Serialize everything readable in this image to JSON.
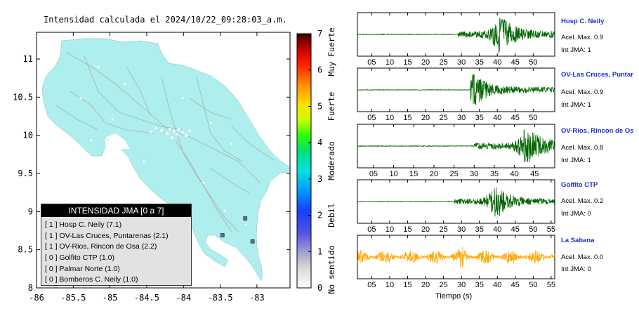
{
  "map": {
    "title": "Intensidad calculada el 2024/10/22_09:28:03_a.m.",
    "x_ticks": [
      "-86",
      "-85.5",
      "-85",
      "-84.5",
      "-84",
      "-83.5",
      "-83"
    ],
    "y_ticks": [
      "11",
      "10.5",
      "10",
      "9.5",
      "9",
      "8.5",
      "8"
    ],
    "land_color": "#aeeeed",
    "station_color": "#6a6aa8"
  },
  "colorbar": {
    "ticks": [
      "0",
      "1",
      "2",
      "3",
      "4",
      "5",
      "6",
      "7"
    ],
    "labels": [
      "No sentido",
      "Debil",
      "Moderado",
      "Fuerte",
      "Muy Fuerte"
    ]
  },
  "legend": {
    "title": "INTENSIDAD JMA [0 a 7]",
    "items": [
      "[ 1 ]  Hosp C. Neily (7.1)",
      "[ 1 ]  OV-Las Cruces, Puntarenas (2.1)",
      "[ 1 ]  OV-Rios, Rincon de Osa (2.2)",
      "[ 0 ]  Golfito CTP (1.0)",
      "[ 0 ]  Palmar Norte (1.0)",
      "[ 0 ]  Bomberos C. Neily (1.0)"
    ]
  },
  "waveforms": [
    {
      "name": "Hosp C. Neily",
      "acel": "Acel. Max. 0.9",
      "jma": "Int JMA: 1",
      "color": "#006400",
      "ticks": [
        "05",
        "10",
        "15",
        "20",
        "25",
        "30",
        "35",
        "40",
        "45",
        "50"
      ]
    },
    {
      "name": "OV-Las Cruces, Puntar",
      "acel": "Acel. Max. 0.9",
      "jma": "Int JMA: 1",
      "color": "#006400",
      "ticks": [
        "05",
        "10",
        "15",
        "20",
        "25",
        "30",
        "35",
        "40",
        "45",
        "50"
      ]
    },
    {
      "name": "OV-Rios, Rincon de Os",
      "acel": "Acel. Max. 0.8",
      "jma": "Int JMA: 1",
      "color": "#006400",
      "ticks": [
        "05",
        "10",
        "15",
        "20",
        "25",
        "30",
        "35",
        "40",
        "45"
      ]
    },
    {
      "name": "Golfito CTP",
      "acel": "Acel. Max. 0.2",
      "jma": "Int JMA: 0",
      "color": "#006400",
      "ticks": [
        "05",
        "10",
        "15",
        "20",
        "25",
        "30",
        "35",
        "40",
        "45",
        "50",
        "55"
      ]
    },
    {
      "name": "La Sabana",
      "acel": "Acel. Max. 0.0",
      "jma": "Int JMA: 0",
      "color": "#ffa500",
      "ticks": [
        "05",
        "10",
        "15",
        "20",
        "25",
        "30",
        "35",
        "40",
        "45",
        "50",
        "55"
      ]
    }
  ],
  "time_label": "Tiempo (s)",
  "chart_data": [
    {
      "type": "scatter",
      "title": "Intensidad calculada el 2024/10/22_09:28:03_a.m.",
      "xlim": [
        -86,
        -82.55
      ],
      "ylim": [
        8,
        11.35
      ],
      "stations_marked": [
        {
          "lon": -83.06,
          "lat": 8.61
        },
        {
          "lon": -83.16,
          "lat": 8.91
        },
        {
          "lon": -83.47,
          "lat": 8.69
        }
      ],
      "colorbar": {
        "range": [
          0,
          7
        ],
        "categories": [
          "No sentido",
          "Debil",
          "Moderado",
          "Fuerte",
          "Muy Fuerte"
        ]
      }
    },
    {
      "type": "line",
      "xlabel": "Tiempo (s)",
      "series": [
        {
          "name": "Hosp C. Neily",
          "xlim": [
            1,
            56
          ],
          "onset": 29,
          "peak_time": 41,
          "amplitude": 0.9,
          "max_accel": 0.9,
          "jma": 1
        },
        {
          "name": "OV-Las Cruces, Puntar",
          "xlim": [
            1,
            56
          ],
          "onset": 32.5,
          "peak_time": 33.5,
          "amplitude": 0.8,
          "max_accel": 0.9,
          "jma": 1
        },
        {
          "name": "OV-Rios, Rincon de Os",
          "xlim": [
            1,
            50
          ],
          "onset": 30,
          "peak_time": 43.5,
          "amplitude": 0.85,
          "max_accel": 0.8,
          "jma": 1
        },
        {
          "name": "Golfito CTP",
          "xlim": [
            1,
            56
          ],
          "onset": 28,
          "peak_time": 40,
          "amplitude": 0.75,
          "max_accel": 0.2,
          "jma": 0
        },
        {
          "name": "La Sabana",
          "xlim": [
            1,
            56
          ],
          "onset": 1,
          "peak_time": 30,
          "amplitude": 0.6,
          "max_accel": 0.0,
          "jma": 0
        }
      ]
    }
  ]
}
